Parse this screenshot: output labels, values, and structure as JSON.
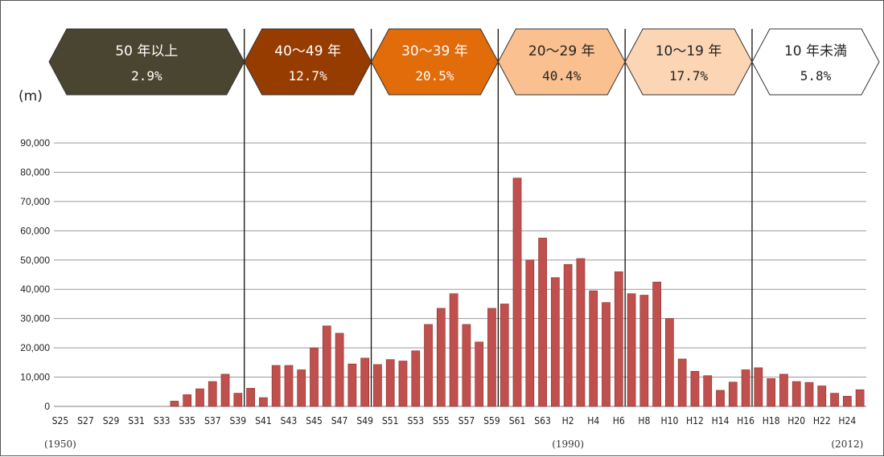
{
  "chart_data": {
    "type": "bar",
    "ylabel": "(m)",
    "ylim": [
      0,
      90000
    ],
    "yticks": [
      "0",
      "10,000",
      "20,000",
      "30,000",
      "40,000",
      "50,000",
      "60,000",
      "70,000",
      "80,000",
      "90,000"
    ],
    "grid": true,
    "categories": [
      "S25",
      "S26",
      "S27",
      "S28",
      "S29",
      "S30",
      "S31",
      "S32",
      "S33",
      "S34",
      "S35",
      "S36",
      "S37",
      "S38",
      "S39",
      "S40",
      "S41",
      "S42",
      "S43",
      "S44",
      "S45",
      "S46",
      "S47",
      "S48",
      "S49",
      "S50",
      "S51",
      "S52",
      "S53",
      "S54",
      "S55",
      "S56",
      "S57",
      "S58",
      "S59",
      "S60",
      "S61",
      "S62",
      "S63",
      "H1",
      "H2",
      "H3",
      "H4",
      "H5",
      "H6",
      "H7",
      "H8",
      "H9",
      "H10",
      "H11",
      "H12",
      "H13",
      "H14",
      "H15",
      "H16",
      "H17",
      "H18",
      "H19",
      "H20",
      "H21",
      "H22",
      "H23",
      "H24",
      "H25"
    ],
    "x_tick_labels": [
      "S25",
      "S27",
      "S29",
      "S31",
      "S33",
      "S35",
      "S37",
      "S39",
      "S41",
      "S43",
      "S45",
      "S47",
      "S49",
      "S51",
      "S53",
      "S55",
      "S57",
      "S59",
      "S61",
      "S63",
      "H2",
      "H4",
      "H6",
      "H8",
      "H10",
      "H12",
      "H14",
      "H16",
      "H18",
      "H20",
      "H22",
      "H24"
    ],
    "values": [
      0,
      0,
      0,
      0,
      0,
      0,
      0,
      0,
      0,
      1800,
      4000,
      6000,
      8500,
      11000,
      4500,
      6200,
      3000,
      14000,
      14000,
      12500,
      20000,
      27500,
      25000,
      14500,
      16500,
      14300,
      16000,
      15500,
      19000,
      28000,
      33500,
      38500,
      28000,
      22000,
      33500,
      35000,
      78000,
      50000,
      57500,
      44000,
      48500,
      50500,
      39500,
      35500,
      46000,
      38500,
      38000,
      42500,
      30000,
      16200,
      12000,
      10500,
      5500,
      8300,
      12500,
      13200,
      9500,
      11000,
      8500,
      8200,
      7000,
      4500,
      3500,
      5700
    ],
    "bar_color": "#c0504d",
    "year_notes": [
      {
        "after": "S25",
        "text": "(1950)"
      },
      {
        "after": "H2",
        "text": "(1990)"
      },
      {
        "after": "H24",
        "text": "(2012)"
      }
    ],
    "age_bands": [
      {
        "label": "50 年以上",
        "pct": "2.9%",
        "fill": "#4a4530",
        "text_color": "#ffffff"
      },
      {
        "label": "40～49 年",
        "pct": "12.7%",
        "fill": "#963c00",
        "text_color": "#ffffff"
      },
      {
        "label": "30～39 年",
        "pct": "20.5%",
        "fill": "#e26b0a",
        "text_color": "#ffffff"
      },
      {
        "label": "20～29 年",
        "pct": "40.4%",
        "fill": "#fac08f",
        "text_color": "#222222"
      },
      {
        "label": "10～19 年",
        "pct": "17.7%",
        "fill": "#fcd5b4",
        "text_color": "#222222"
      },
      {
        "label": "10 年未満",
        "pct": "5.8%",
        "fill": "#ffffff",
        "text_color": "#222222"
      }
    ],
    "age_band_bounds": [
      "S39/S40",
      "S49/S50",
      "S59/S60",
      "H6/H7",
      "H16/H17"
    ]
  }
}
